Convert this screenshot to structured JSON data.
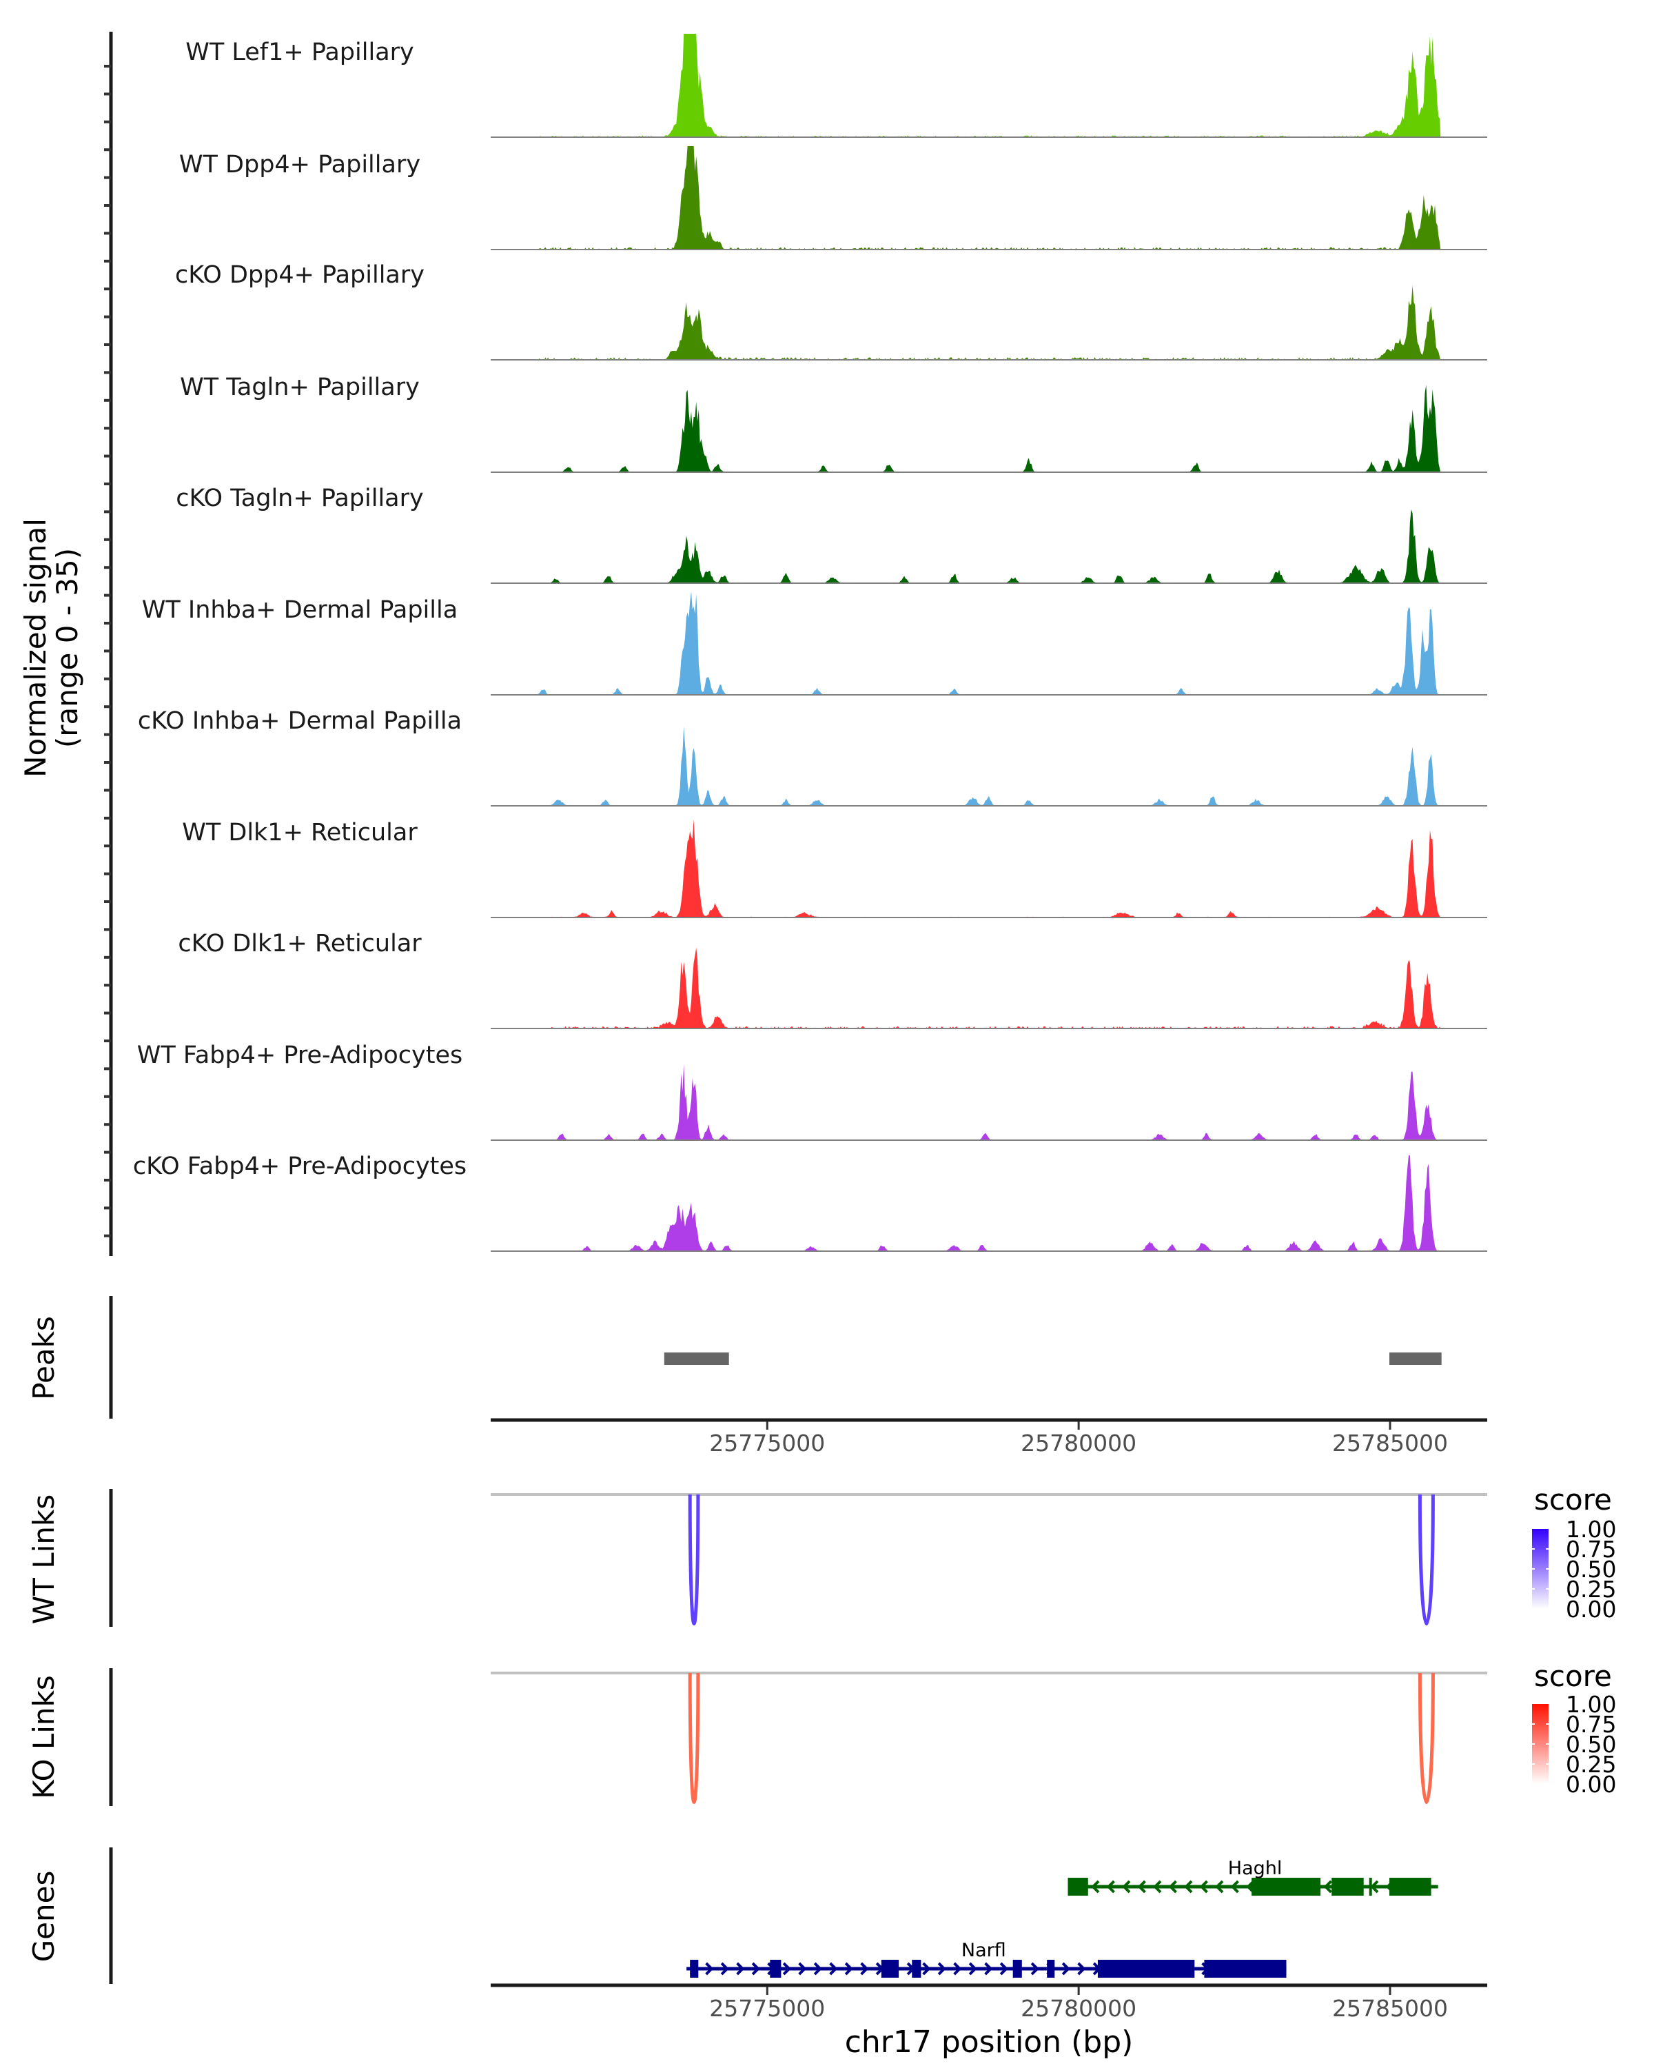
{
  "chart_data": {
    "type": "area",
    "title": "",
    "chromosome": "chr17",
    "xlabel": "chr17 position (bp)",
    "ylabel_line1": "Normalized signal",
    "ylabel_line2": "(range 0 - 35)",
    "y_range": [
      0,
      35
    ],
    "xlim": [
      25770560,
      25786560
    ],
    "x_ticks": [
      25775000,
      25780000,
      25785000
    ],
    "x_tick_labels": [
      "25775000",
      "25780000",
      "25785000"
    ],
    "coverage_tracks": [
      {
        "name": "WT Lef1+ Papillary",
        "color": "#66cd00",
        "peaks": [
          [
            25773750,
            32,
            60
          ],
          [
            25773820,
            28,
            70
          ],
          [
            25773680,
            24,
            60
          ],
          [
            25773950,
            8,
            50
          ],
          [
            25774080,
            3,
            60
          ],
          [
            25773560,
            4,
            80
          ],
          [
            25784800,
            2,
            120
          ],
          [
            25785350,
            26,
            70
          ],
          [
            25785600,
            22,
            60
          ],
          [
            25785700,
            20,
            60
          ],
          [
            25785150,
            4,
            60
          ]
        ],
        "noise": 0.6
      },
      {
        "name": "WT Dpp4+ Papillary",
        "color": "#458b00",
        "peaks": [
          [
            25773760,
            30,
            60
          ],
          [
            25773850,
            22,
            60
          ],
          [
            25773660,
            16,
            60
          ],
          [
            25774050,
            5,
            60
          ],
          [
            25774200,
            3,
            50
          ],
          [
            25785300,
            14,
            60
          ],
          [
            25785550,
            16,
            60
          ],
          [
            25785700,
            13,
            50
          ]
        ],
        "noise": 0.8
      },
      {
        "name": "cKO Dpp4+ Papillary",
        "color": "#458b00",
        "peaks": [
          [
            25773700,
            18,
            60
          ],
          [
            25773870,
            16,
            60
          ],
          [
            25774050,
            4,
            80
          ],
          [
            25773500,
            3,
            60
          ],
          [
            25785350,
            22,
            60
          ],
          [
            25785650,
            16,
            60
          ],
          [
            25785000,
            3,
            100
          ],
          [
            25785150,
            5,
            60
          ]
        ],
        "noise": 0.9
      },
      {
        "name": "WT Tagln+ Papillary",
        "color": "#006400",
        "peaks": [
          [
            25773730,
            21,
            50
          ],
          [
            25773870,
            20,
            50
          ],
          [
            25773650,
            10,
            40
          ],
          [
            25774000,
            6,
            40
          ],
          [
            25774200,
            3,
            40
          ],
          [
            25771800,
            2,
            40
          ],
          [
            25772700,
            2,
            40
          ],
          [
            25775900,
            2,
            40
          ],
          [
            25776950,
            3,
            40
          ],
          [
            25779200,
            4,
            40
          ],
          [
            25781880,
            3,
            40
          ],
          [
            25785350,
            20,
            50
          ],
          [
            25785580,
            28,
            50
          ],
          [
            25785700,
            22,
            40
          ],
          [
            25784700,
            3,
            40
          ],
          [
            25784950,
            5,
            40
          ],
          [
            25785150,
            4,
            40
          ]
        ],
        "noise": 0
      },
      {
        "name": "cKO Tagln+ Papillary",
        "color": "#006400",
        "peaks": [
          [
            25773700,
            13,
            50
          ],
          [
            25773850,
            12,
            50
          ],
          [
            25773550,
            4,
            60
          ],
          [
            25774050,
            4,
            60
          ],
          [
            25774300,
            3,
            40
          ],
          [
            25771600,
            1.5,
            40
          ],
          [
            25772450,
            2.5,
            40
          ],
          [
            25775300,
            3,
            40
          ],
          [
            25776050,
            2,
            60
          ],
          [
            25777200,
            2,
            40
          ],
          [
            25778000,
            3,
            40
          ],
          [
            25778950,
            2,
            50
          ],
          [
            25780150,
            2,
            60
          ],
          [
            25780650,
            3,
            40
          ],
          [
            25781200,
            2,
            60
          ],
          [
            25782100,
            3,
            40
          ],
          [
            25783200,
            4,
            60
          ],
          [
            25784450,
            5,
            100
          ],
          [
            25784850,
            5,
            60
          ],
          [
            25785350,
            22,
            50
          ],
          [
            25785650,
            14,
            50
          ]
        ],
        "noise": 0
      },
      {
        "name": "WT Inhba+ Dermal Papilla",
        "color": "#5dade2",
        "peaks": [
          [
            25773760,
            32,
            50
          ],
          [
            25773850,
            25,
            40
          ],
          [
            25773650,
            14,
            40
          ],
          [
            25774050,
            6,
            40
          ],
          [
            25774250,
            3,
            40
          ],
          [
            25771400,
            2,
            40
          ],
          [
            25772600,
            2,
            40
          ],
          [
            25775800,
            2,
            40
          ],
          [
            25778000,
            2,
            40
          ],
          [
            25781650,
            2,
            40
          ],
          [
            25784800,
            2,
            60
          ],
          [
            25785300,
            26,
            50
          ],
          [
            25785530,
            20,
            40
          ],
          [
            25785650,
            26,
            40
          ],
          [
            25785100,
            4,
            60
          ]
        ],
        "noise": 0
      },
      {
        "name": "cKO Inhba+ Dermal Papilla",
        "color": "#5dade2",
        "peaks": [
          [
            25773660,
            22,
            40
          ],
          [
            25773820,
            20,
            40
          ],
          [
            25774050,
            5,
            40
          ],
          [
            25774300,
            3,
            40
          ],
          [
            25771650,
            2,
            60
          ],
          [
            25772400,
            2,
            40
          ],
          [
            25775300,
            2,
            40
          ],
          [
            25775800,
            2,
            60
          ],
          [
            25778300,
            3,
            60
          ],
          [
            25778550,
            3,
            40
          ],
          [
            25779200,
            2,
            40
          ],
          [
            25781300,
            2,
            60
          ],
          [
            25782150,
            3,
            40
          ],
          [
            25782850,
            2,
            60
          ],
          [
            25784950,
            3,
            60
          ],
          [
            25785350,
            18,
            50
          ],
          [
            25785650,
            18,
            40
          ]
        ],
        "noise": 0
      },
      {
        "name": "WT Dlk1+ Reticular",
        "color": "#ff3333",
        "peaks": [
          [
            25773730,
            26,
            60
          ],
          [
            25773850,
            22,
            50
          ],
          [
            25774150,
            4,
            60
          ],
          [
            25772050,
            1.5,
            60
          ],
          [
            25772500,
            2,
            40
          ],
          [
            25773300,
            2,
            80
          ],
          [
            25775600,
            1.5,
            80
          ],
          [
            25780700,
            1.5,
            100
          ],
          [
            25781600,
            1.5,
            40
          ],
          [
            25782450,
            2,
            40
          ],
          [
            25784800,
            3,
            100
          ],
          [
            25785350,
            24,
            50
          ],
          [
            25785650,
            26,
            50
          ]
        ],
        "noise": 0.3
      },
      {
        "name": "cKO Dlk1+ Reticular",
        "color": "#ff3333",
        "peaks": [
          [
            25773650,
            22,
            50
          ],
          [
            25773850,
            24,
            50
          ],
          [
            25774200,
            4,
            60
          ],
          [
            25773400,
            2,
            80
          ],
          [
            25785300,
            23,
            50
          ],
          [
            25785600,
            19,
            50
          ],
          [
            25784750,
            2,
            100
          ]
        ],
        "noise": 0.8
      },
      {
        "name": "WT Fabp4+ Pre-Adipocytes",
        "color": "#b03ee8",
        "peaks": [
          [
            25773650,
            22,
            50
          ],
          [
            25773820,
            22,
            40
          ],
          [
            25774050,
            5,
            40
          ],
          [
            25774300,
            2,
            40
          ],
          [
            25771700,
            2,
            40
          ],
          [
            25772450,
            2,
            40
          ],
          [
            25773000,
            2,
            40
          ],
          [
            25773300,
            2,
            40
          ],
          [
            25778500,
            2,
            40
          ],
          [
            25781300,
            2,
            60
          ],
          [
            25782050,
            2,
            40
          ],
          [
            25782900,
            2,
            60
          ],
          [
            25783800,
            2,
            40
          ],
          [
            25784450,
            2,
            40
          ],
          [
            25784750,
            2,
            40
          ],
          [
            25785350,
            20,
            50
          ],
          [
            25785600,
            14,
            50
          ]
        ],
        "noise": 0
      },
      {
        "name": "cKO Fabp4+ Pre-Adipocytes",
        "color": "#b03ee8",
        "peaks": [
          [
            25773600,
            13,
            80
          ],
          [
            25773800,
            14,
            60
          ],
          [
            25773450,
            7,
            60
          ],
          [
            25774100,
            3,
            40
          ],
          [
            25774350,
            2,
            40
          ],
          [
            25772100,
            1.5,
            40
          ],
          [
            25772900,
            2,
            60
          ],
          [
            25773200,
            3,
            60
          ],
          [
            25775700,
            1.5,
            60
          ],
          [
            25776850,
            2,
            40
          ],
          [
            25778000,
            2,
            60
          ],
          [
            25778450,
            2,
            40
          ],
          [
            25781150,
            3,
            60
          ],
          [
            25781500,
            2,
            40
          ],
          [
            25782000,
            3,
            60
          ],
          [
            25782700,
            2,
            40
          ],
          [
            25783450,
            3,
            60
          ],
          [
            25783800,
            3,
            60
          ],
          [
            25784400,
            3,
            40
          ],
          [
            25784850,
            4,
            60
          ],
          [
            25785300,
            30,
            50
          ],
          [
            25785600,
            26,
            50
          ]
        ],
        "noise": 0
      }
    ],
    "peaks_track": {
      "label": "Peaks",
      "color": "#666666",
      "regions": [
        [
          25773346,
          25774385
        ],
        [
          25784989,
          25785827
        ]
      ]
    },
    "link_tracks": [
      {
        "label": "WT Links",
        "legend_title": "score",
        "color_high": "#3300ff",
        "line_color": "#6040ff",
        "links": [
          {
            "start": 25773760,
            "end": 25773890,
            "score": 0.85
          },
          {
            "start": 25785480,
            "end": 25785690,
            "score": 0.85
          }
        ]
      },
      {
        "label": "KO Links",
        "legend_title": "score",
        "color_high": "#ff1100",
        "line_color": "#ff6a4d",
        "links": [
          {
            "start": 25773760,
            "end": 25773890,
            "score": 0.75
          },
          {
            "start": 25785480,
            "end": 25785690,
            "score": 0.75
          }
        ]
      }
    ],
    "legend_ticks": [
      "1.00",
      "0.75",
      "0.50",
      "0.25",
      "0.00"
    ],
    "genes_track": {
      "label": "Genes",
      "genes": [
        {
          "name": "Haghl",
          "strand": "-",
          "color": "#006400",
          "start": 25779827,
          "end": 25785771,
          "exons": [
            [
              25779827,
              25780151
            ],
            [
              25782777,
              25783883
            ],
            [
              25784062,
              25784576
            ],
            [
              25784665,
              25784709
            ],
            [
              25784989,
              25785659
            ]
          ]
        },
        {
          "name": "Narfl",
          "strand": "+",
          "color": "#00008b",
          "start": 25773704,
          "end": 25783335,
          "exons": [
            [
              25773760,
              25773894
            ],
            [
              25775045,
              25775223
            ],
            [
              25776832,
              25777112
            ],
            [
              25777324,
              25777469
            ],
            [
              25778944,
              25779089
            ],
            [
              25779492,
              25779615
            ],
            [
              25780307,
              25781860
            ],
            [
              25782017,
              25783335
            ]
          ]
        }
      ]
    }
  }
}
